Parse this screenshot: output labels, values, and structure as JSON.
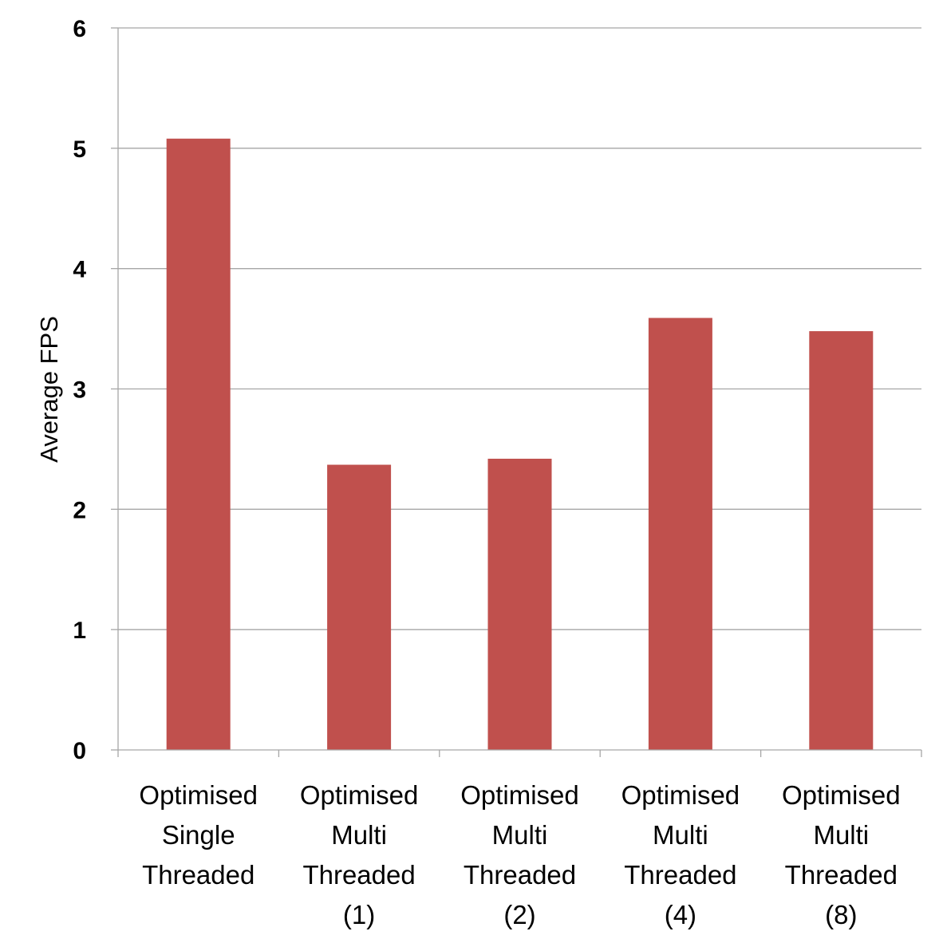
{
  "chart_data": {
    "type": "bar",
    "title": "",
    "xlabel": "",
    "ylabel": "Average FPS",
    "ylim": [
      0,
      6
    ],
    "yticks": [
      0,
      1,
      2,
      3,
      4,
      5,
      6
    ],
    "grid": true,
    "legend": "none",
    "bar_color": "#c0504d",
    "categories": [
      [
        "Optimised",
        "Single",
        "Threaded"
      ],
      [
        "Optimised",
        "Multi",
        "Threaded",
        "(1)"
      ],
      [
        "Optimised",
        "Multi",
        "Threaded",
        "(2)"
      ],
      [
        "Optimised",
        "Multi",
        "Threaded",
        "(4)"
      ],
      [
        "Optimised",
        "Multi",
        "Threaded",
        "(8)"
      ]
    ],
    "values": [
      5.08,
      2.37,
      2.42,
      3.59,
      3.48
    ]
  }
}
